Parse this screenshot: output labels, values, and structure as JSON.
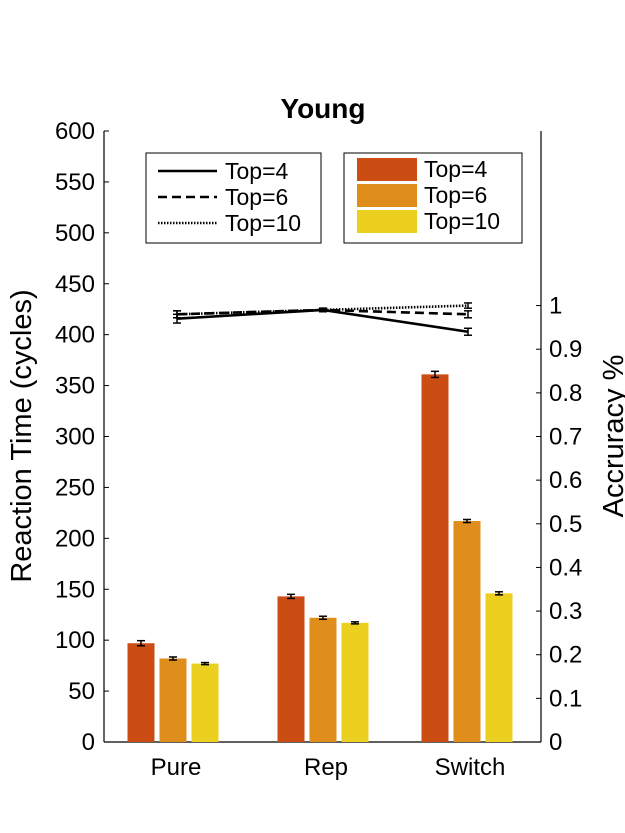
{
  "chart_data": {
    "type": "bar",
    "title": "Young",
    "categories": [
      "Pure",
      "Rep",
      "Switch"
    ],
    "ylabel": "Reaction Time (cycles)",
    "y2label": "Accruracy %",
    "ylim": [
      0,
      600
    ],
    "y2lim": [
      0,
      1.4
    ],
    "yticks": [
      0,
      50,
      100,
      150,
      200,
      250,
      300,
      350,
      400,
      450,
      500,
      550,
      600
    ],
    "y2ticks": [
      0,
      0.1,
      0.2,
      0.3,
      0.4,
      0.5,
      0.6,
      0.7,
      0.8,
      0.9,
      1
    ],
    "bar_series": [
      {
        "name": "Top=4",
        "color": "#cc4d14",
        "values": [
          97,
          143,
          361
        ],
        "errors": [
          2.5,
          2,
          3
        ]
      },
      {
        "name": "Top=6",
        "color": "#e08e1b",
        "values": [
          82,
          122,
          217
        ],
        "errors": [
          1.5,
          1.5,
          1.5
        ]
      },
      {
        "name": "Top=10",
        "color": "#ecd020",
        "values": [
          77,
          117,
          146
        ],
        "errors": [
          1,
          1,
          1.5
        ]
      }
    ],
    "line_series": [
      {
        "name": "Top=4",
        "dash": "solid",
        "values": [
          0.97,
          0.99,
          0.94
        ],
        "errors": [
          0.01,
          0.004,
          0.008
        ]
      },
      {
        "name": "Top=6",
        "dash": "dashed",
        "values": [
          0.98,
          0.99,
          0.98
        ],
        "errors": [
          0.008,
          0.004,
          0.008
        ]
      },
      {
        "name": "Top=10",
        "dash": "dotted",
        "values": [
          0.98,
          0.99,
          1.0
        ],
        "errors": [
          0.008,
          0.004,
          0.006
        ]
      }
    ],
    "legend_lines": [
      "Top=4",
      "Top=6",
      "Top=10"
    ],
    "legend_bars": [
      "Top=4",
      "Top=6",
      "Top=10"
    ],
    "legend_placement": "top",
    "grid": false
  }
}
